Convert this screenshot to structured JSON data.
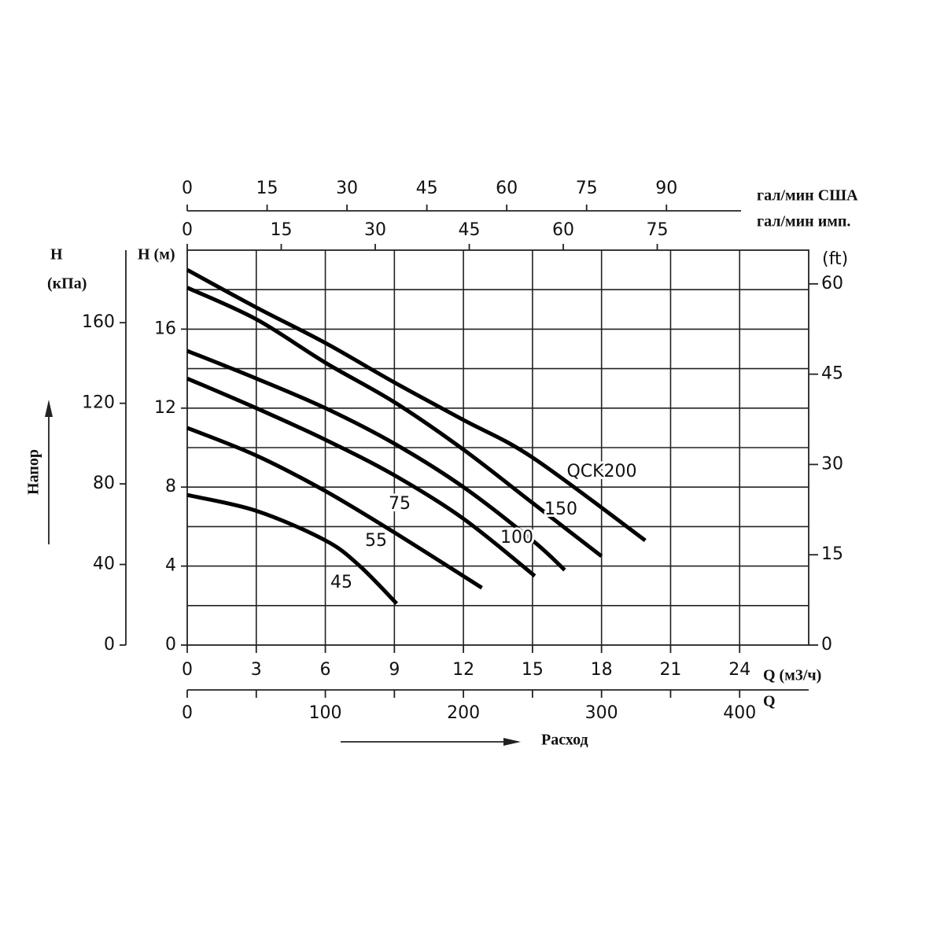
{
  "chart_data": {
    "type": "line",
    "xlabel": "Q (м3/ч)",
    "xlim": [
      0,
      27
    ],
    "xticks": [
      0,
      3,
      6,
      9,
      12,
      15,
      18,
      21,
      24
    ],
    "xgrid": [
      3,
      6,
      9,
      12,
      15,
      18,
      21,
      24
    ],
    "ylabel": "H (м)",
    "ylim": [
      0,
      20
    ],
    "yticks": [
      0,
      4,
      8,
      12,
      16
    ],
    "ygrid": [
      2,
      4,
      6,
      8,
      10,
      12,
      14,
      16,
      18
    ],
    "y2label": "(ft)",
    "y2lim": [
      0,
      65.6
    ],
    "y2ticks": [
      0,
      15,
      30,
      45,
      60
    ],
    "y3label": [
      "H",
      "(кПа)"
    ],
    "y3lim": [
      0,
      196
    ],
    "y3ticks": [
      0,
      40,
      80,
      120,
      160
    ],
    "x2label": "гал/мин США",
    "x2lim": [
      0,
      104
    ],
    "x2ticks": [
      0,
      15,
      30,
      45,
      60,
      75,
      90
    ],
    "x3label": "гал/мин имп.",
    "x3lim": [
      0,
      90
    ],
    "x3ticks": [
      0,
      15,
      30,
      45,
      60,
      75
    ],
    "x4label": "Q",
    "x4lim": [
      0,
      450
    ],
    "x4ticks": [
      0,
      100,
      200,
      300,
      400
    ],
    "x4minor": [
      50,
      150,
      250,
      350
    ],
    "y_title": "Напор",
    "x_title": "Расход",
    "color": "#000000",
    "series": [
      {
        "name": "QCK200",
        "x": [
          0,
          3,
          6,
          9,
          12,
          15,
          19.9
        ],
        "values": [
          19.0,
          17.1,
          15.3,
          13.3,
          11.4,
          9.5,
          5.3
        ]
      },
      {
        "name": "150",
        "x": [
          0,
          3,
          6,
          9,
          12,
          15,
          18.0
        ],
        "values": [
          18.1,
          16.5,
          14.3,
          12.3,
          9.9,
          7.2,
          4.5
        ]
      },
      {
        "name": "100",
        "x": [
          0,
          3,
          6,
          9,
          12,
          15,
          16.4
        ],
        "values": [
          14.9,
          13.5,
          12.0,
          10.2,
          8.0,
          5.3,
          3.8
        ]
      },
      {
        "name": "75",
        "x": [
          0,
          3,
          6,
          9,
          12,
          15.1
        ],
        "values": [
          13.5,
          12.0,
          10.4,
          8.6,
          6.4,
          3.5
        ]
      },
      {
        "name": "55",
        "x": [
          0,
          3,
          6,
          9,
          12.8
        ],
        "values": [
          11.0,
          9.6,
          7.8,
          5.7,
          2.9
        ]
      },
      {
        "name": "45",
        "x": [
          0,
          3,
          6,
          7.5,
          9.1
        ],
        "values": [
          7.6,
          6.8,
          5.3,
          4.0,
          2.1
        ]
      }
    ]
  }
}
